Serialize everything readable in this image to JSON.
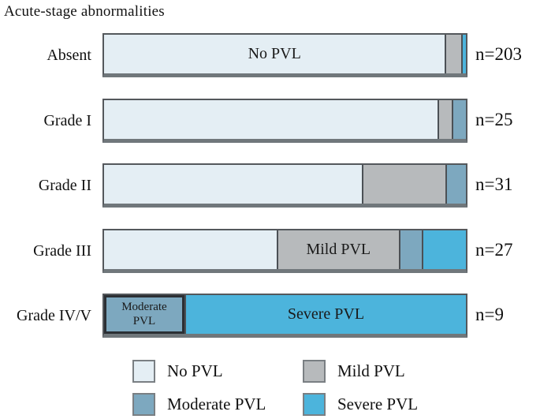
{
  "title": "Acute-stage abnormalities",
  "colors": {
    "no_pvl": "#e4eef4",
    "mild_pvl": "#b7babc",
    "moderate_pvl": "#7da8bf",
    "severe_pvl": "#4cb4dc",
    "segment_divider": "#4b5055",
    "bar_border": "#54585c",
    "bar_bottom_shadow": "#70777b",
    "text": "#111111"
  },
  "legend": {
    "items": [
      {
        "label": "No PVL",
        "color": "#e4eef4"
      },
      {
        "label": "Mild PVL",
        "color": "#b7babc"
      },
      {
        "label": "Moderate PVL",
        "color": "#7da8bf"
      },
      {
        "label": "Severe PVL",
        "color": "#4cb4dc"
      }
    ]
  },
  "chart_data": {
    "type": "bar",
    "orientation": "horizontal",
    "stacked": true,
    "title": "Acute-stage abnormalities",
    "categories": [
      "Absent",
      "Grade I",
      "Grade II",
      "Grade III",
      "Grade IV/V"
    ],
    "row_n": [
      203,
      25,
      31,
      27,
      9
    ],
    "n_labels": [
      "n=203",
      "n=25",
      "n=31",
      "n=27",
      "n=9"
    ],
    "unit": "percent of each row's n (segment widths estimated from pixels)",
    "series": [
      {
        "name": "No PVL",
        "percents": [
          94.2,
          92.2,
          71.3,
          47.7,
          0
        ],
        "counts_est": [
          191,
          23,
          22,
          13,
          0
        ]
      },
      {
        "name": "Mild PVL",
        "percents": [
          4.5,
          3.9,
          23.1,
          33.7,
          0
        ],
        "counts_est": [
          9,
          1,
          7,
          9,
          0
        ]
      },
      {
        "name": "Moderate PVL",
        "percents": [
          0,
          3.9,
          5.6,
          6.5,
          22.2
        ],
        "counts_est": [
          0,
          1,
          2,
          2,
          2
        ]
      },
      {
        "name": "Severe PVL",
        "percents": [
          1.3,
          0,
          0,
          12.1,
          77.8
        ],
        "counts_est": [
          3,
          0,
          0,
          3,
          7
        ]
      }
    ],
    "rows": [
      {
        "category": "Absent",
        "n_label": "n=203",
        "segments": [
          {
            "series": "No PVL",
            "percent": 94.2,
            "label": "No PVL"
          },
          {
            "series": "Mild PVL",
            "percent": 4.5,
            "label": ""
          },
          {
            "series": "Severe PVL",
            "percent": 1.3,
            "label": ""
          }
        ]
      },
      {
        "category": "Grade I",
        "n_label": "n=25",
        "segments": [
          {
            "series": "No PVL",
            "percent": 92.2,
            "label": ""
          },
          {
            "series": "Mild PVL",
            "percent": 3.9,
            "label": ""
          },
          {
            "series": "Moderate PVL",
            "percent": 3.9,
            "label": ""
          }
        ]
      },
      {
        "category": "Grade II",
        "n_label": "n=31",
        "segments": [
          {
            "series": "No PVL",
            "percent": 71.3,
            "label": ""
          },
          {
            "series": "Mild PVL",
            "percent": 23.1,
            "label": ""
          },
          {
            "series": "Moderate PVL",
            "percent": 5.6,
            "label": ""
          }
        ]
      },
      {
        "category": "Grade III",
        "n_label": "n=27",
        "segments": [
          {
            "series": "No PVL",
            "percent": 47.7,
            "label": ""
          },
          {
            "series": "Mild PVL",
            "percent": 33.7,
            "label": "Mild PVL"
          },
          {
            "series": "Moderate PVL",
            "percent": 6.5,
            "label": ""
          },
          {
            "series": "Severe PVL",
            "percent": 12.1,
            "label": ""
          }
        ]
      },
      {
        "category": "Grade IV/V",
        "n_label": "n=9",
        "segments": [
          {
            "series": "Moderate PVL",
            "percent": 22.2,
            "label": "Moderate PVL",
            "label_size": "small",
            "emphasized": true
          },
          {
            "series": "Severe PVL",
            "percent": 77.8,
            "label": "Severe PVL"
          }
        ]
      }
    ],
    "legend_entries": [
      "No PVL",
      "Mild PVL",
      "Moderate PVL",
      "Severe PVL"
    ],
    "legend_position": "bottom",
    "grid": false
  }
}
